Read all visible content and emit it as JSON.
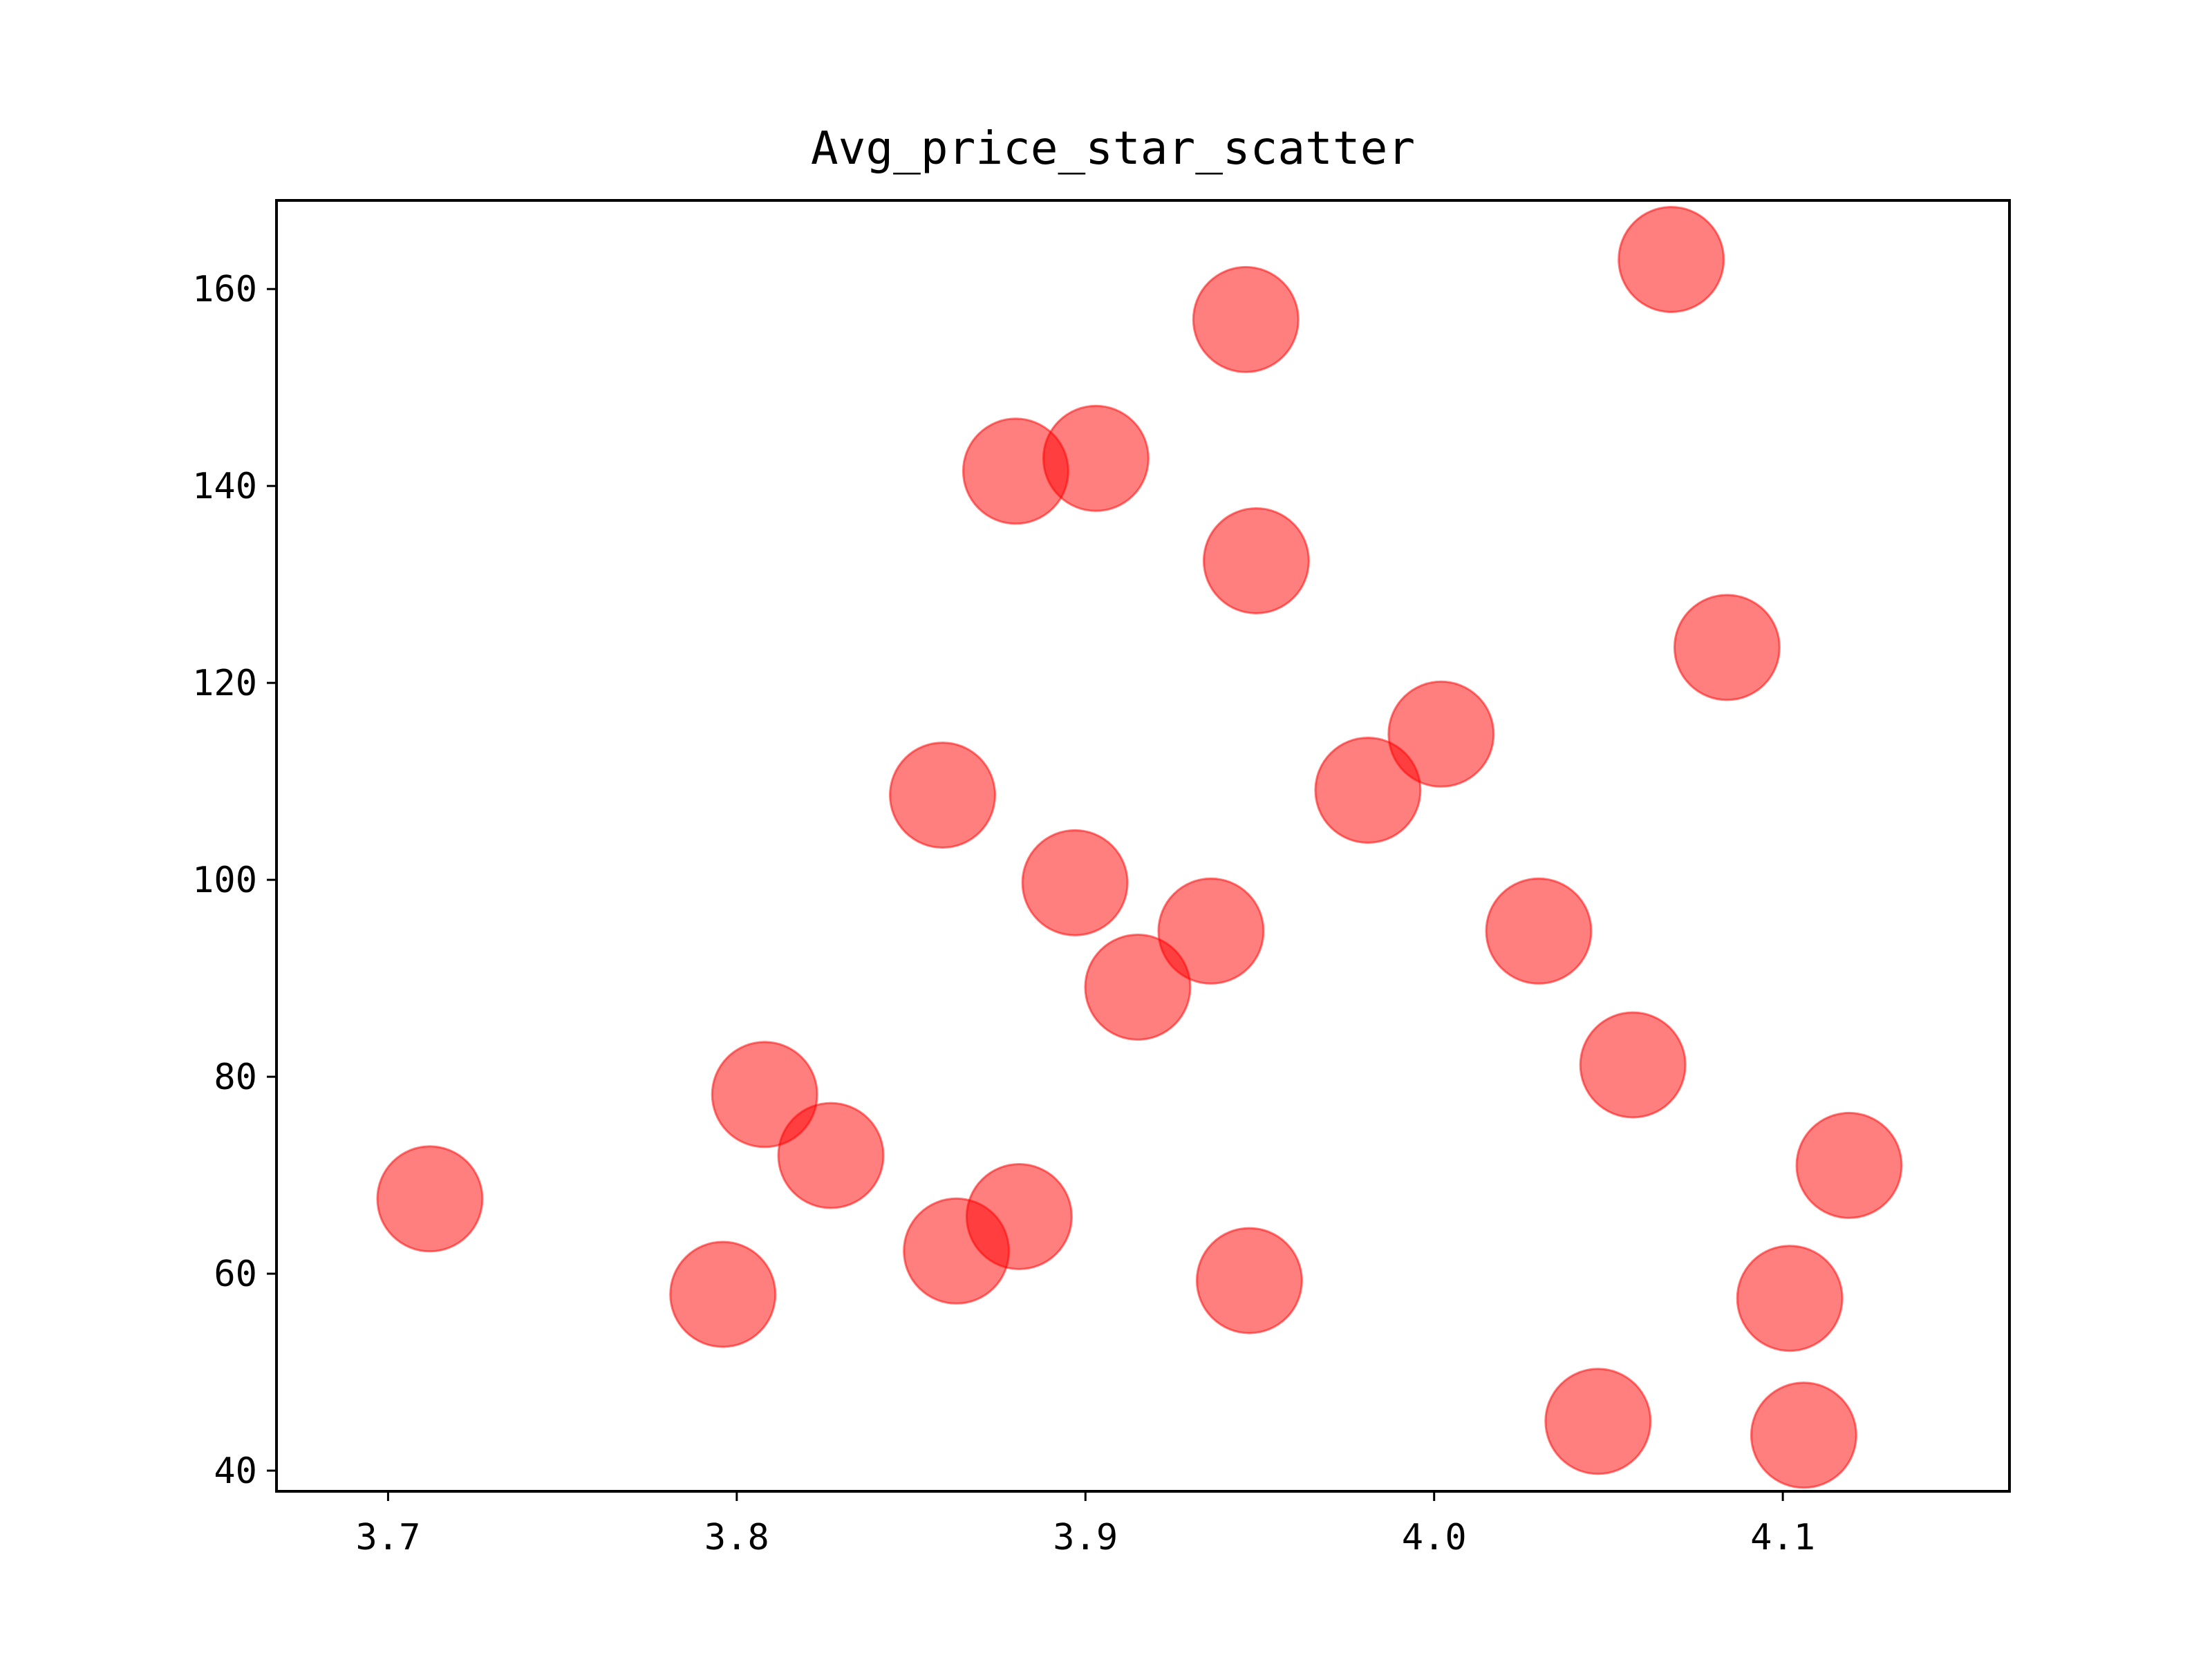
{
  "chart_data": {
    "type": "scatter",
    "title": "Avg_price_star_scatter",
    "xlabel": "",
    "ylabel": "",
    "xlim": [
      3.668,
      4.165
    ],
    "ylim": [
      37.9,
      169
    ],
    "xticks": [
      3.7,
      3.8,
      3.9,
      4.0,
      4.1
    ],
    "xtick_labels": [
      "3.7",
      "3.8",
      "3.9",
      "4.0",
      "4.1"
    ],
    "yticks": [
      40,
      60,
      80,
      100,
      120,
      140,
      160
    ],
    "ytick_labels": [
      "40",
      "60",
      "80",
      "100",
      "120",
      "140",
      "160"
    ],
    "marker_color": "#ff0000",
    "marker_alpha": 0.5,
    "grid": false,
    "legend": "none",
    "points": [
      {
        "x": 3.712,
        "y": 67.6
      },
      {
        "x": 3.796,
        "y": 57.9
      },
      {
        "x": 3.808,
        "y": 78.2
      },
      {
        "x": 3.827,
        "y": 72.0
      },
      {
        "x": 3.859,
        "y": 108.6
      },
      {
        "x": 3.863,
        "y": 62.3
      },
      {
        "x": 3.88,
        "y": 141.5
      },
      {
        "x": 3.881,
        "y": 65.8
      },
      {
        "x": 3.897,
        "y": 99.7
      },
      {
        "x": 3.903,
        "y": 142.8
      },
      {
        "x": 3.915,
        "y": 89.1
      },
      {
        "x": 3.936,
        "y": 94.8
      },
      {
        "x": 3.946,
        "y": 156.9
      },
      {
        "x": 3.947,
        "y": 59.3
      },
      {
        "x": 3.949,
        "y": 132.4
      },
      {
        "x": 3.981,
        "y": 109.1
      },
      {
        "x": 4.002,
        "y": 114.8
      },
      {
        "x": 4.03,
        "y": 94.8
      },
      {
        "x": 4.047,
        "y": 45.0
      },
      {
        "x": 4.057,
        "y": 81.2
      },
      {
        "x": 4.068,
        "y": 163.0
      },
      {
        "x": 4.084,
        "y": 123.6
      },
      {
        "x": 4.102,
        "y": 57.5
      },
      {
        "x": 4.106,
        "y": 43.6
      },
      {
        "x": 4.119,
        "y": 71.0
      }
    ]
  }
}
